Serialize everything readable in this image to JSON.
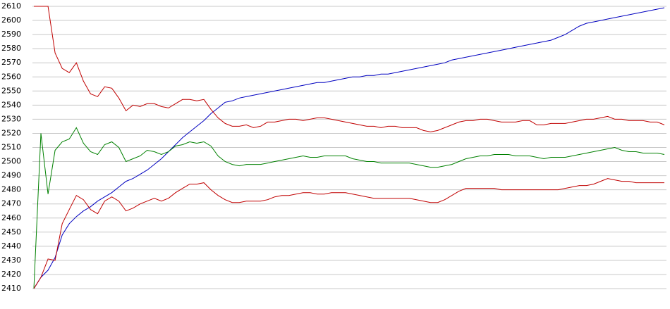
{
  "chart_data": {
    "type": "line",
    "ylim": [
      2410,
      2610
    ],
    "yticks": [
      2410,
      2420,
      2430,
      2440,
      2450,
      2460,
      2470,
      2480,
      2490,
      2500,
      2510,
      2520,
      2530,
      2540,
      2550,
      2560,
      2570,
      2580,
      2590,
      2600,
      2610
    ],
    "grid": true,
    "series": [
      {
        "color": "#0000c0",
        "values": [
          2410,
          2418,
          2423,
          2432,
          2448,
          2456,
          2461,
          2465,
          2468,
          2472,
          2475,
          2478,
          2482,
          2486,
          2488,
          2491,
          2494,
          2498,
          2502,
          2507,
          2512,
          2517,
          2521,
          2525,
          2529,
          2534,
          2538,
          2542,
          2543,
          2545,
          2546,
          2547,
          2548,
          2549,
          2550,
          2551,
          2552,
          2553,
          2554,
          2555,
          2556,
          2556,
          2557,
          2558,
          2559,
          2560,
          2560,
          2561,
          2561,
          2562,
          2562,
          2563,
          2564,
          2565,
          2566,
          2567,
          2568,
          2569,
          2570,
          2572,
          2573,
          2574,
          2575,
          2576,
          2577,
          2578,
          2579,
          2580,
          2581,
          2582,
          2583,
          2584,
          2585,
          2586,
          2588,
          2590,
          2593,
          2596,
          2598,
          2599,
          2600,
          2601,
          2602,
          2603,
          2604,
          2605,
          2606,
          2607,
          2608,
          2609
        ]
      },
      {
        "color": "#c00000",
        "values": [
          2610,
          2610,
          2610,
          2577,
          2566,
          2563,
          2570,
          2557,
          2548,
          2546,
          2553,
          2552,
          2545,
          2536,
          2540,
          2539,
          2541,
          2541,
          2539,
          2538,
          2541,
          2544,
          2544,
          2543,
          2544,
          2537,
          2531,
          2527,
          2525,
          2525,
          2526,
          2524,
          2525,
          2528,
          2528,
          2529,
          2530,
          2530,
          2529,
          2530,
          2531,
          2531,
          2530,
          2529,
          2528,
          2527,
          2526,
          2525,
          2525,
          2524,
          2525,
          2525,
          2524,
          2524,
          2524,
          2522,
          2521,
          2522,
          2524,
          2526,
          2528,
          2529,
          2529,
          2530,
          2530,
          2529,
          2528,
          2528,
          2528,
          2529,
          2529,
          2526,
          2526,
          2527,
          2527,
          2527,
          2528,
          2529,
          2530,
          2530,
          2531,
          2532,
          2530,
          2530,
          2529,
          2529,
          2529,
          2528,
          2528,
          2526
        ]
      },
      {
        "color": "#008000",
        "values": [
          2410,
          2520,
          2477,
          2508,
          2514,
          2516,
          2524,
          2513,
          2507,
          2505,
          2512,
          2514,
          2510,
          2500,
          2502,
          2504,
          2508,
          2507,
          2505,
          2507,
          2511,
          2512,
          2514,
          2513,
          2514,
          2511,
          2504,
          2500,
          2498,
          2497,
          2498,
          2498,
          2498,
          2499,
          2500,
          2501,
          2502,
          2503,
          2504,
          2503,
          2503,
          2504,
          2504,
          2504,
          2504,
          2502,
          2501,
          2500,
          2500,
          2499,
          2499,
          2499,
          2499,
          2499,
          2498,
          2497,
          2496,
          2496,
          2497,
          2498,
          2500,
          2502,
          2503,
          2504,
          2504,
          2505,
          2505,
          2505,
          2504,
          2504,
          2504,
          2503,
          2502,
          2503,
          2503,
          2503,
          2504,
          2505,
          2506,
          2507,
          2508,
          2509,
          2510,
          2508,
          2507,
          2507,
          2506,
          2506,
          2506,
          2505
        ]
      },
      {
        "color": "#c00000",
        "values": [
          2410,
          2418,
          2431,
          2430,
          2456,
          2466,
          2476,
          2473,
          2466,
          2463,
          2472,
          2475,
          2472,
          2465,
          2467,
          2470,
          2472,
          2474,
          2472,
          2474,
          2478,
          2481,
          2484,
          2484,
          2485,
          2480,
          2476,
          2473,
          2471,
          2471,
          2472,
          2472,
          2472,
          2473,
          2475,
          2476,
          2476,
          2477,
          2478,
          2478,
          2477,
          2477,
          2478,
          2478,
          2478,
          2477,
          2476,
          2475,
          2474,
          2474,
          2474,
          2474,
          2474,
          2474,
          2473,
          2472,
          2471,
          2471,
          2473,
          2476,
          2479,
          2481,
          2481,
          2481,
          2481,
          2481,
          2480,
          2480,
          2480,
          2480,
          2480,
          2480,
          2480,
          2480,
          2480,
          2481,
          2482,
          2483,
          2483,
          2484,
          2486,
          2488,
          2487,
          2486,
          2486,
          2485,
          2485,
          2485,
          2485,
          2485
        ]
      }
    ]
  }
}
